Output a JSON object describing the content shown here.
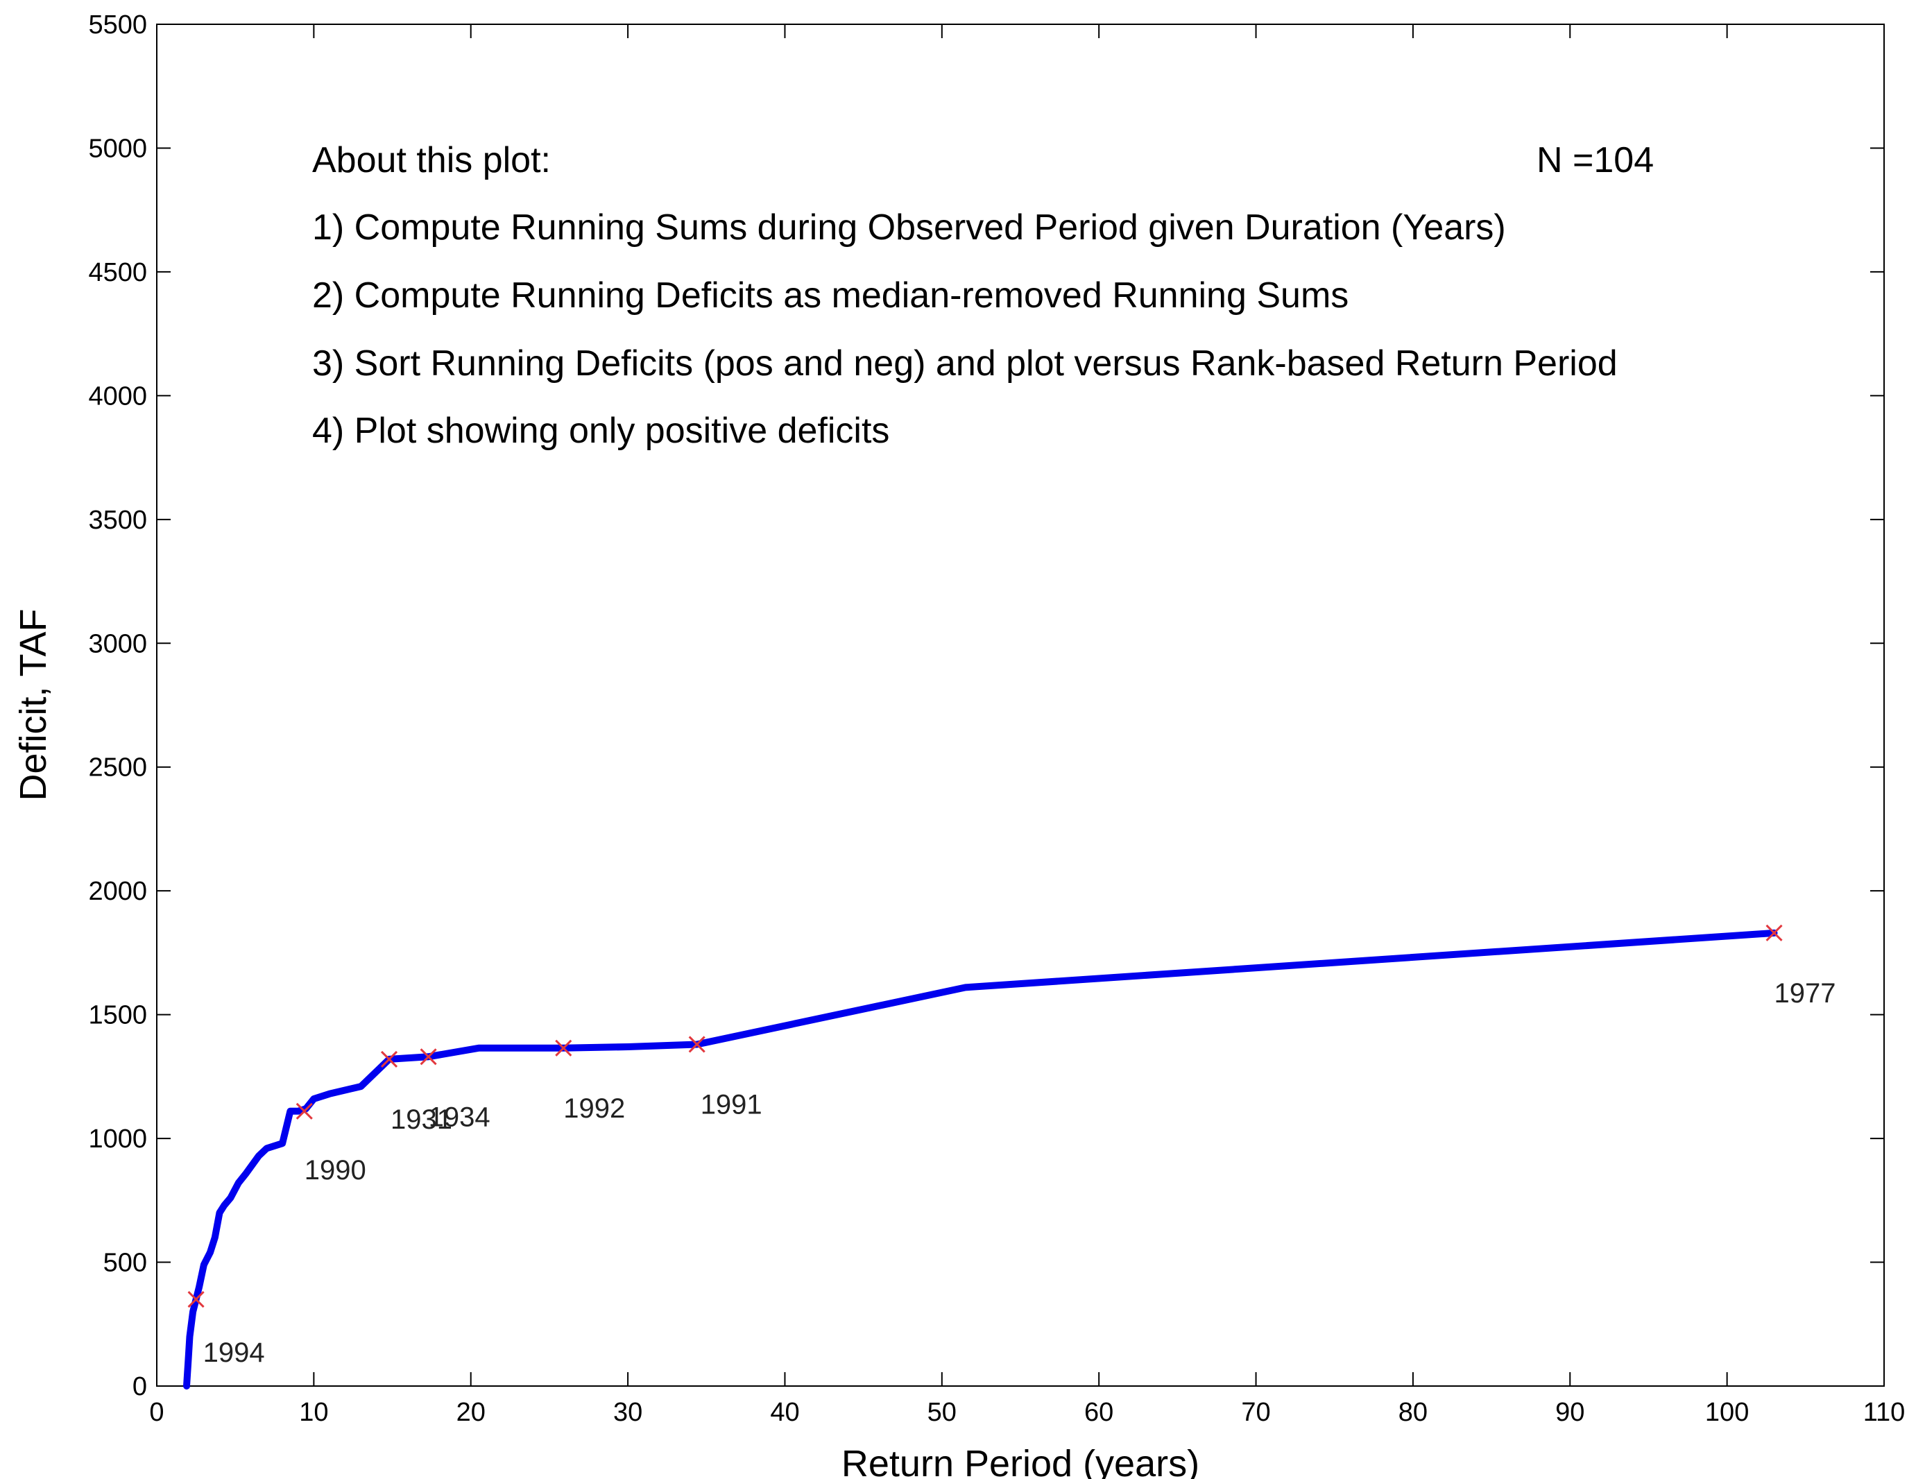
{
  "chart_data": {
    "type": "line",
    "title": "",
    "xlabel": "Return Period (years)",
    "ylabel": "Deficit, TAF",
    "xlim": [
      0,
      110
    ],
    "ylim": [
      0,
      5500
    ],
    "xticks": [
      0,
      10,
      20,
      30,
      40,
      50,
      60,
      70,
      80,
      90,
      100,
      110
    ],
    "yticks": [
      0,
      500,
      1000,
      1500,
      2000,
      2500,
      3000,
      3500,
      4000,
      4500,
      5000,
      5500
    ],
    "grid": false,
    "line_color": "#0000ee",
    "marker_color": "#e2383e",
    "annotation_lines": [
      "About this plot:",
      "1) Compute Running Sums during Observed Period given Duration (Years)",
      "2) Compute Running Deficits as median-removed Running Sums",
      "3) Sort Running Deficits (pos and neg) and plot versus Rank-based Return Period",
      "4) Plot showing only positive deficits"
    ],
    "sample_size_label": "N =104",
    "series": [
      {
        "x": [
          1.9,
          2.0,
          2.1,
          2.3,
          2.5,
          2.7,
          3.0,
          3.4,
          3.7,
          4.0,
          4.3,
          4.7,
          5.2,
          5.7,
          6.5,
          7.0,
          8.0,
          8.5,
          9.0,
          9.5,
          10.0,
          11.0,
          13.0,
          14.8,
          17.3,
          20.5,
          25.9,
          30.0,
          34.4,
          51.5,
          103.0
        ],
        "y": [
          0,
          100,
          200,
          300,
          350,
          400,
          490,
          540,
          600,
          700,
          730,
          760,
          820,
          860,
          930,
          960,
          980,
          1110,
          1110,
          1120,
          1160,
          1180,
          1210,
          1320,
          1330,
          1365,
          1365,
          1370,
          1380,
          1610,
          1830
        ]
      }
    ],
    "marked_points": [
      {
        "x": 2.5,
        "y": 350,
        "label": "1994"
      },
      {
        "x": 9.4,
        "y": 1110,
        "label": "1990"
      },
      {
        "x": 14.8,
        "y": 1320,
        "label": "1931"
      },
      {
        "x": 17.3,
        "y": 1330,
        "label": "1934"
      },
      {
        "x": 25.9,
        "y": 1365,
        "label": "1992"
      },
      {
        "x": 34.4,
        "y": 1380,
        "label": "1991"
      },
      {
        "x": 103.0,
        "y": 1830,
        "label": "1977"
      }
    ]
  }
}
